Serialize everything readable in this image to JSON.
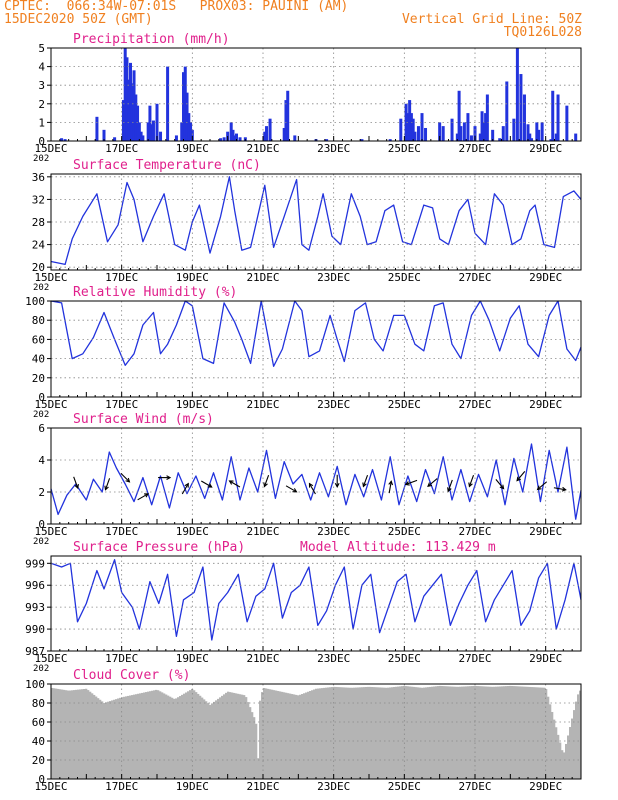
{
  "header": {
    "line1_left": "CPTEC:  066:34W-07:01S   PROX03: PAUINI (AM)",
    "line2_left": "15DEC2020 50Z (GMT)",
    "line2_right": "Vertical Grid Line: 50Z",
    "line3_right": "TQ0126L028"
  },
  "colors": {
    "header": "#f08020",
    "title": "#e0208c",
    "series": "#2233dd",
    "cloud": "#b4b4b4",
    "arrow": "#000000"
  },
  "x_axis": {
    "tick_labels": [
      "15DEC",
      "17DEC",
      "19DEC",
      "21DEC",
      "23DEC",
      "25DEC",
      "27DEC",
      "29DEC"
    ],
    "tick_days": [
      0,
      2,
      4,
      6,
      8,
      10,
      12,
      14
    ],
    "range_days": [
      0,
      15
    ],
    "year_fragment": "202"
  },
  "chart_data": [
    {
      "id": "precip",
      "type": "bar",
      "title": "Precipitation (mm/h)",
      "ylim": [
        0,
        5
      ],
      "yticks": [
        0,
        1,
        2,
        3,
        4,
        5
      ],
      "x_days": [
        0.3,
        0.4,
        1.3,
        1.5,
        1.8,
        2.05,
        2.1,
        2.15,
        2.2,
        2.25,
        2.3,
        2.35,
        2.4,
        2.45,
        2.5,
        2.55,
        2.6,
        2.75,
        2.8,
        2.85,
        2.9,
        3.0,
        3.1,
        3.3,
        3.55,
        3.7,
        3.75,
        3.8,
        3.85,
        3.9,
        3.95,
        4.0,
        4.8,
        4.9,
        5.0,
        5.1,
        5.15,
        5.2,
        5.25,
        5.35,
        5.5,
        6.05,
        6.1,
        6.2,
        6.6,
        6.65,
        6.7,
        6.9,
        7.5,
        7.8,
        8.8,
        9.6,
        9.9,
        10.05,
        10.1,
        10.15,
        10.2,
        10.25,
        10.3,
        10.4,
        10.5,
        10.6,
        11.0,
        11.1,
        11.35,
        11.5,
        11.55,
        11.6,
        11.7,
        11.8,
        11.9,
        12.0,
        12.15,
        12.2,
        12.25,
        12.3,
        12.35,
        12.5,
        12.7,
        12.8,
        12.9,
        13.1,
        13.2,
        13.3,
        13.4,
        13.5,
        13.55,
        13.6,
        13.75,
        13.8,
        13.9,
        14.15,
        14.2,
        14.3,
        14.35,
        14.6,
        14.85
      ],
      "values": [
        0.15,
        0.1,
        1.3,
        0.6,
        0.2,
        2.2,
        5.0,
        4.5,
        3.3,
        4.2,
        3.1,
        3.8,
        2.5,
        1.9,
        1.0,
        0.5,
        0.3,
        1.0,
        1.9,
        0.9,
        1.1,
        2.0,
        0.5,
        4.0,
        0.3,
        1.0,
        3.7,
        4.0,
        2.6,
        1.5,
        1.0,
        0.6,
        0.15,
        0.2,
        0.5,
        1.0,
        0.6,
        0.3,
        0.4,
        0.2,
        0.2,
        0.5,
        0.8,
        1.2,
        0.7,
        2.2,
        2.7,
        0.3,
        0.1,
        0.1,
        0.1,
        0.1,
        1.2,
        2.0,
        1.5,
        2.2,
        1.5,
        1.2,
        0.5,
        0.8,
        1.5,
        0.7,
        1.0,
        0.8,
        1.2,
        0.4,
        2.7,
        0.8,
        1.0,
        1.5,
        0.3,
        0.8,
        0.4,
        1.6,
        1.0,
        1.5,
        2.5,
        0.6,
        0.15,
        0.8,
        3.2,
        1.2,
        5.0,
        3.6,
        2.5,
        0.9,
        0.4,
        0.15,
        1.0,
        0.6,
        1.0,
        0.1,
        2.7,
        0.4,
        2.5,
        1.9,
        0.4
      ]
    },
    {
      "id": "temp",
      "type": "line",
      "title": "Surface Temperature (nC)",
      "ylim": [
        19.5,
        36.5
      ],
      "yticks": [
        20,
        24,
        28,
        32,
        36
      ],
      "x_days": [
        0,
        0.4,
        0.6,
        0.9,
        1.3,
        1.6,
        1.9,
        2.15,
        2.35,
        2.6,
        2.9,
        3.2,
        3.5,
        3.8,
        4.0,
        4.2,
        4.5,
        4.8,
        5.05,
        5.2,
        5.4,
        5.65,
        6.05,
        6.3,
        6.6,
        6.95,
        7.1,
        7.3,
        7.55,
        7.7,
        7.95,
        8.2,
        8.5,
        8.75,
        8.95,
        9.2,
        9.45,
        9.7,
        9.95,
        10.2,
        10.55,
        10.8,
        11.0,
        11.25,
        11.55,
        11.8,
        12.0,
        12.3,
        12.55,
        12.8,
        13.05,
        13.3,
        13.55,
        13.7,
        13.95,
        14.25,
        14.5,
        14.8,
        15.0
      ],
      "values": [
        21,
        20.5,
        25,
        29,
        33,
        24.5,
        27.5,
        35,
        32,
        24.5,
        29,
        33,
        24,
        23,
        28,
        31,
        22.5,
        29,
        36,
        30,
        23,
        23.5,
        34.5,
        23.5,
        29,
        35.5,
        24,
        23,
        29,
        33,
        25.5,
        24,
        33,
        29,
        24,
        24.5,
        30,
        31,
        24.5,
        24,
        31,
        30.5,
        25,
        24,
        30,
        32,
        26,
        24,
        33,
        31,
        24,
        25,
        30,
        31,
        24,
        23.5,
        32.5,
        33.5,
        32
      ]
    },
    {
      "id": "rh",
      "type": "line",
      "title": "Relative Humidity (%)",
      "ylim": [
        0,
        100
      ],
      "yticks": [
        0,
        20,
        40,
        60,
        80,
        100
      ],
      "x_days": [
        0,
        0.3,
        0.6,
        0.9,
        1.2,
        1.5,
        1.8,
        2.1,
        2.35,
        2.6,
        2.9,
        3.1,
        3.3,
        3.55,
        3.8,
        4.0,
        4.3,
        4.6,
        4.9,
        5.2,
        5.4,
        5.65,
        5.95,
        6.3,
        6.55,
        6.9,
        7.1,
        7.3,
        7.6,
        7.9,
        8.1,
        8.3,
        8.6,
        8.9,
        9.15,
        9.4,
        9.7,
        10.0,
        10.3,
        10.55,
        10.85,
        11.1,
        11.35,
        11.6,
        11.9,
        12.15,
        12.4,
        12.7,
        13.0,
        13.25,
        13.5,
        13.8,
        14.1,
        14.35,
        14.6,
        14.85,
        15.0
      ],
      "values": [
        100,
        98,
        40,
        45,
        62,
        88,
        60,
        33,
        45,
        75,
        88,
        45,
        55,
        75,
        100,
        95,
        40,
        35,
        98,
        78,
        60,
        35,
        100,
        32,
        50,
        100,
        90,
        42,
        48,
        85,
        60,
        37,
        90,
        98,
        60,
        48,
        85,
        85,
        55,
        48,
        95,
        98,
        55,
        40,
        85,
        100,
        80,
        48,
        82,
        95,
        55,
        42,
        85,
        100,
        50,
        38,
        52
      ]
    },
    {
      "id": "wind",
      "type": "line",
      "title": "Surface Wind (m/s)",
      "ylim": [
        0,
        6
      ],
      "yticks": [
        0,
        2,
        4,
        6
      ],
      "x_days": [
        0,
        0.2,
        0.45,
        0.7,
        1.0,
        1.2,
        1.45,
        1.65,
        1.85,
        2.1,
        2.35,
        2.6,
        2.85,
        3.1,
        3.35,
        3.6,
        3.85,
        4.1,
        4.35,
        4.6,
        4.85,
        5.1,
        5.35,
        5.6,
        5.85,
        6.1,
        6.35,
        6.6,
        6.85,
        7.1,
        7.35,
        7.6,
        7.85,
        8.1,
        8.35,
        8.6,
        8.85,
        9.1,
        9.35,
        9.6,
        9.85,
        10.1,
        10.35,
        10.6,
        10.85,
        11.1,
        11.35,
        11.6,
        11.85,
        12.1,
        12.35,
        12.6,
        12.85,
        13.1,
        13.35,
        13.6,
        13.85,
        14.1,
        14.35,
        14.6,
        14.85,
        15.0
      ],
      "values": [
        2.2,
        0.6,
        1.8,
        2.5,
        1.5,
        2.8,
        2.0,
        4.5,
        3.5,
        2.5,
        1.4,
        2.9,
        1.2,
        3.0,
        1.0,
        3.2,
        1.9,
        3.0,
        1.6,
        3.2,
        1.5,
        4.2,
        1.5,
        3.5,
        2.0,
        4.6,
        1.6,
        3.9,
        2.5,
        3.1,
        1.5,
        3.2,
        1.7,
        3.6,
        1.2,
        3.1,
        1.7,
        3.4,
        1.5,
        4.2,
        1.2,
        3.0,
        1.4,
        3.4,
        1.9,
        4.2,
        1.5,
        3.4,
        1.4,
        3.1,
        1.7,
        4.0,
        1.2,
        4.1,
        2.0,
        5.0,
        1.4,
        4.6,
        2.0,
        4.8,
        0.3,
        2.1
      ],
      "arrows": [
        {
          "x": 0.7,
          "speed": 2.6,
          "dir_deg": 160
        },
        {
          "x": 1.6,
          "speed": 2.5,
          "dir_deg": 200
        },
        {
          "x": 2.1,
          "speed": 2.9,
          "dir_deg": 135
        },
        {
          "x": 2.6,
          "speed": 1.7,
          "dir_deg": 60
        },
        {
          "x": 3.2,
          "speed": 2.9,
          "dir_deg": 90
        },
        {
          "x": 3.8,
          "speed": 2.2,
          "dir_deg": 30
        },
        {
          "x": 4.4,
          "speed": 2.5,
          "dir_deg": 120
        },
        {
          "x": 5.2,
          "speed": 2.5,
          "dir_deg": 300
        },
        {
          "x": 6.1,
          "speed": 2.7,
          "dir_deg": 200
        },
        {
          "x": 6.8,
          "speed": 2.2,
          "dir_deg": 120
        },
        {
          "x": 7.4,
          "speed": 2.2,
          "dir_deg": 330
        },
        {
          "x": 8.1,
          "speed": 2.7,
          "dir_deg": 180
        },
        {
          "x": 8.9,
          "speed": 2.7,
          "dir_deg": 200
        },
        {
          "x": 9.6,
          "speed": 2.3,
          "dir_deg": 10
        },
        {
          "x": 10.2,
          "speed": 2.6,
          "dir_deg": 250
        },
        {
          "x": 10.8,
          "speed": 2.6,
          "dir_deg": 230
        },
        {
          "x": 11.3,
          "speed": 2.4,
          "dir_deg": 200
        },
        {
          "x": 11.9,
          "speed": 2.7,
          "dir_deg": 200
        },
        {
          "x": 12.7,
          "speed": 2.5,
          "dir_deg": 140
        },
        {
          "x": 13.3,
          "speed": 3.0,
          "dir_deg": 220
        },
        {
          "x": 13.9,
          "speed": 2.4,
          "dir_deg": 230
        },
        {
          "x": 14.4,
          "speed": 2.2,
          "dir_deg": 100
        }
      ]
    },
    {
      "id": "pressure",
      "type": "line",
      "title": "Surface Pressure (hPa)",
      "annotation": "Model Altitude: 113.429 m",
      "ylim": [
        987,
        1000
      ],
      "yticks": [
        987,
        990,
        993,
        996,
        999
      ],
      "x_days": [
        0,
        0.3,
        0.55,
        0.75,
        1.0,
        1.3,
        1.5,
        1.8,
        2.0,
        2.3,
        2.5,
        2.8,
        3.05,
        3.3,
        3.55,
        3.75,
        4.05,
        4.3,
        4.55,
        4.75,
        5.0,
        5.3,
        5.55,
        5.8,
        6.05,
        6.3,
        6.55,
        6.8,
        7.05,
        7.3,
        7.55,
        7.8,
        8.05,
        8.3,
        8.55,
        8.8,
        9.05,
        9.3,
        9.55,
        9.8,
        10.05,
        10.3,
        10.55,
        10.8,
        11.05,
        11.3,
        11.55,
        11.8,
        12.05,
        12.3,
        12.55,
        12.8,
        13.05,
        13.3,
        13.55,
        13.8,
        14.05,
        14.3,
        14.55,
        14.8,
        15.0
      ],
      "values": [
        999,
        998.5,
        999,
        991,
        993.5,
        998,
        995.5,
        999.5,
        995,
        993,
        990,
        996.5,
        993.5,
        997.5,
        989,
        994,
        995,
        998.5,
        988.5,
        993.5,
        995,
        997.5,
        991,
        994.5,
        995.5,
        999,
        991.5,
        995,
        996,
        998.5,
        990.5,
        992.5,
        996,
        998.5,
        990,
        996,
        997.5,
        989.5,
        993,
        996.5,
        997.5,
        991,
        994.5,
        996,
        997.5,
        990.5,
        993.5,
        996,
        998,
        991,
        994,
        996,
        998,
        990.5,
        992.5,
        997,
        999,
        990,
        994,
        999,
        994
      ]
    },
    {
      "id": "cloud",
      "type": "area",
      "title": "Cloud Cover (%)",
      "ylim": [
        0,
        100
      ],
      "yticks": [
        0,
        20,
        40,
        60,
        80,
        100
      ],
      "x_days": [
        0,
        0.5,
        1.0,
        1.5,
        2.0,
        2.5,
        3.0,
        3.5,
        4.0,
        4.5,
        5.0,
        5.5,
        5.8,
        5.85,
        5.9,
        6.0,
        6.5,
        7.0,
        7.5,
        8.0,
        8.5,
        9.0,
        9.5,
        10.0,
        10.5,
        11.0,
        11.5,
        12.0,
        12.5,
        13.0,
        13.5,
        14.0,
        14.5,
        14.9,
        15.0
      ],
      "values": [
        96,
        93,
        95,
        80,
        86,
        90,
        94,
        84,
        95,
        78,
        92,
        88,
        60,
        10,
        80,
        96,
        92,
        88,
        95,
        97,
        96,
        97,
        96,
        98,
        96,
        98,
        97,
        98,
        97,
        98,
        97,
        96,
        25,
        88,
        95
      ]
    }
  ]
}
